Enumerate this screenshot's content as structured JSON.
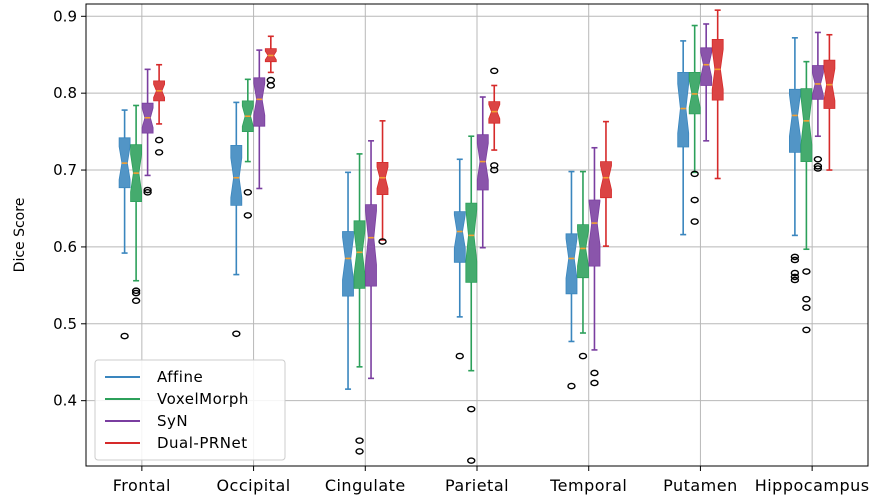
{
  "chart_data": {
    "type": "box",
    "ylabel": "Dice Score",
    "ylim": [
      0.315,
      0.916
    ],
    "yticks": [
      "0.4",
      "0.5",
      "0.6",
      "0.7",
      "0.8",
      "0.9"
    ],
    "grid": true,
    "legend_position": "lower-left",
    "categories": [
      "Frontal",
      "Occipital",
      "Cingulate",
      "Parietal",
      "Temporal",
      "Putamen",
      "Hippocampus"
    ],
    "series": [
      {
        "name": "Affine",
        "color": "#3a86be",
        "boxes": [
          {
            "whislo": 0.592,
            "q1": 0.677,
            "med": 0.709,
            "q3": 0.742,
            "whishi": 0.778,
            "fliers": [
              0.484
            ]
          },
          {
            "whislo": 0.564,
            "q1": 0.654,
            "med": 0.69,
            "q3": 0.732,
            "whishi": 0.788,
            "fliers": [
              0.487
            ]
          },
          {
            "whislo": 0.415,
            "q1": 0.536,
            "med": 0.585,
            "q3": 0.62,
            "whishi": 0.697,
            "fliers": []
          },
          {
            "whislo": 0.509,
            "q1": 0.58,
            "med": 0.62,
            "q3": 0.646,
            "whishi": 0.714,
            "fliers": [
              0.458
            ]
          },
          {
            "whislo": 0.477,
            "q1": 0.539,
            "med": 0.585,
            "q3": 0.617,
            "whishi": 0.698,
            "fliers": [
              0.419
            ]
          },
          {
            "whislo": 0.616,
            "q1": 0.73,
            "med": 0.78,
            "q3": 0.827,
            "whishi": 0.868,
            "fliers": []
          },
          {
            "whislo": 0.615,
            "q1": 0.723,
            "med": 0.771,
            "q3": 0.805,
            "whishi": 0.872,
            "fliers": [
              0.587,
              0.583,
              0.566,
              0.561,
              0.557
            ]
          }
        ]
      },
      {
        "name": "VoxelMorph",
        "color": "#2ca05a",
        "boxes": [
          {
            "whislo": 0.556,
            "q1": 0.659,
            "med": 0.696,
            "q3": 0.733,
            "whishi": 0.784,
            "fliers": [
              0.543,
              0.54,
              0.53
            ]
          },
          {
            "whislo": 0.711,
            "q1": 0.75,
            "med": 0.77,
            "q3": 0.79,
            "whishi": 0.818,
            "fliers": [
              0.671,
              0.641
            ]
          },
          {
            "whislo": 0.444,
            "q1": 0.546,
            "med": 0.593,
            "q3": 0.634,
            "whishi": 0.721,
            "fliers": [
              0.348,
              0.334
            ]
          },
          {
            "whislo": 0.439,
            "q1": 0.554,
            "med": 0.615,
            "q3": 0.657,
            "whishi": 0.744,
            "fliers": [
              0.389,
              0.322
            ]
          },
          {
            "whislo": 0.488,
            "q1": 0.56,
            "med": 0.598,
            "q3": 0.629,
            "whishi": 0.698,
            "fliers": [
              0.458
            ]
          },
          {
            "whislo": 0.697,
            "q1": 0.773,
            "med": 0.799,
            "q3": 0.827,
            "whishi": 0.888,
            "fliers": [
              0.695,
              0.661,
              0.633
            ]
          },
          {
            "whislo": 0.597,
            "q1": 0.711,
            "med": 0.764,
            "q3": 0.806,
            "whishi": 0.841,
            "fliers": [
              0.568,
              0.532,
              0.521,
              0.492
            ]
          }
        ]
      },
      {
        "name": "SyN",
        "color": "#7a3ea0",
        "boxes": [
          {
            "whislo": 0.693,
            "q1": 0.748,
            "med": 0.768,
            "q3": 0.787,
            "whishi": 0.831,
            "fliers": [
              0.674,
              0.671
            ]
          },
          {
            "whislo": 0.676,
            "q1": 0.757,
            "med": 0.792,
            "q3": 0.82,
            "whishi": 0.856,
            "fliers": []
          },
          {
            "whislo": 0.429,
            "q1": 0.549,
            "med": 0.612,
            "q3": 0.655,
            "whishi": 0.738,
            "fliers": []
          },
          {
            "whislo": 0.599,
            "q1": 0.674,
            "med": 0.711,
            "q3": 0.746,
            "whishi": 0.795,
            "fliers": []
          },
          {
            "whislo": 0.466,
            "q1": 0.575,
            "med": 0.631,
            "q3": 0.661,
            "whishi": 0.729,
            "fliers": [
              0.436,
              0.423
            ]
          },
          {
            "whislo": 0.738,
            "q1": 0.81,
            "med": 0.837,
            "q3": 0.859,
            "whishi": 0.89,
            "fliers": []
          },
          {
            "whislo": 0.744,
            "q1": 0.792,
            "med": 0.812,
            "q3": 0.836,
            "whishi": 0.879,
            "fliers": [
              0.714,
              0.705,
              0.702
            ]
          }
        ]
      },
      {
        "name": "Dual-PRNet",
        "color": "#d62a2a",
        "boxes": [
          {
            "whislo": 0.76,
            "q1": 0.79,
            "med": 0.803,
            "q3": 0.816,
            "whishi": 0.837,
            "fliers": [
              0.739,
              0.723
            ]
          },
          {
            "whislo": 0.827,
            "q1": 0.841,
            "med": 0.849,
            "q3": 0.858,
            "whishi": 0.874,
            "fliers": [
              0.817,
              0.81
            ]
          },
          {
            "whislo": 0.609,
            "q1": 0.668,
            "med": 0.69,
            "q3": 0.71,
            "whishi": 0.764,
            "fliers": [
              0.607
            ]
          },
          {
            "whislo": 0.726,
            "q1": 0.761,
            "med": 0.776,
            "q3": 0.789,
            "whishi": 0.81,
            "fliers": [
              0.829,
              0.706,
              0.7
            ]
          },
          {
            "whislo": 0.601,
            "q1": 0.664,
            "med": 0.69,
            "q3": 0.711,
            "whishi": 0.763,
            "fliers": []
          },
          {
            "whislo": 0.689,
            "q1": 0.791,
            "med": 0.831,
            "q3": 0.87,
            "whishi": 0.908,
            "fliers": []
          },
          {
            "whislo": 0.7,
            "q1": 0.78,
            "med": 0.811,
            "q3": 0.843,
            "whishi": 0.876,
            "fliers": []
          }
        ]
      }
    ],
    "median_color": "#f5a030"
  }
}
